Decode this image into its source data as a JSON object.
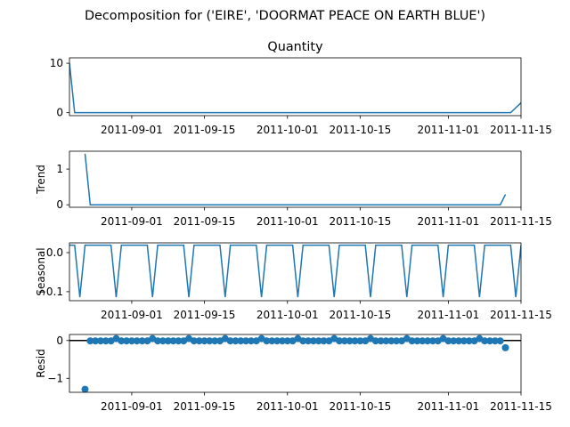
{
  "figure_title": "Decomposition for ('EIRE', 'DOORMAT PEACE ON EARTH BLUE')",
  "colors": {
    "line": "#1f77b4",
    "axis": "#000000",
    "background": "#ffffff"
  },
  "chart_data": [
    {
      "panel": "quantity",
      "type": "line",
      "title": "Quantity",
      "ylabel": "",
      "xlim": [
        "2011-08-20",
        "2011-11-15"
      ],
      "ylim": [
        -0.6,
        11.1
      ],
      "yticks": [
        0,
        10
      ],
      "xticks": [
        "2011-09-01",
        "2011-09-15",
        "2011-10-01",
        "2011-10-15",
        "2011-11-01",
        "2011-11-15"
      ],
      "x": [
        "2011-08-20",
        "2011-08-21",
        "2011-11-13",
        "2011-11-15"
      ],
      "y": [
        10,
        0,
        0,
        2
      ]
    },
    {
      "panel": "trend",
      "type": "line",
      "title": "",
      "ylabel": "Trend",
      "xlim": [
        "2011-08-20",
        "2011-11-15"
      ],
      "ylim": [
        -0.07,
        1.5
      ],
      "yticks": [
        0,
        1
      ],
      "xticks": [
        "2011-09-01",
        "2011-09-15",
        "2011-10-01",
        "2011-10-15",
        "2011-11-01",
        "2011-11-15"
      ],
      "x": [
        "2011-08-23",
        "2011-08-24",
        "2011-11-11",
        "2011-11-12"
      ],
      "y": [
        1.43,
        0.0,
        0.0,
        0.29
      ]
    },
    {
      "panel": "seasonal",
      "type": "line",
      "title": "",
      "ylabel": "Seasonal",
      "xlim": [
        "2011-08-20",
        "2011-11-15"
      ],
      "ylim": [
        -0.123,
        0.025
      ],
      "yticks": [
        0.0,
        -0.1
      ],
      "ytick_labels": [
        "0.0",
        "−0.1"
      ],
      "xticks": [
        "2011-09-01",
        "2011-09-15",
        "2011-10-01",
        "2011-10-15",
        "2011-11-01",
        "2011-11-15"
      ],
      "period_days": 7,
      "pattern": [
        0.019,
        0.019,
        -0.114,
        0.019,
        0.019,
        0.019,
        0.019
      ],
      "start": "2011-08-20",
      "days": 88
    },
    {
      "panel": "resid",
      "type": "scatter",
      "title": "",
      "ylabel": "Resid",
      "xlim": [
        "2011-08-20",
        "2011-11-15"
      ],
      "ylim": [
        -1.37,
        0.16
      ],
      "yticks": [
        0,
        -1
      ],
      "ytick_labels": [
        "0",
        "−1"
      ],
      "xticks": [
        "2011-09-01",
        "2011-09-15",
        "2011-10-01",
        "2011-10-15",
        "2011-11-01",
        "2011-11-15"
      ],
      "zero_line": 0,
      "first_point": {
        "x": "2011-08-23",
        "y": -1.29
      },
      "last_point": {
        "x": "2011-11-12",
        "y": -0.19
      },
      "series_start": "2011-08-24",
      "series_end": "2011-11-11",
      "base_value": -0.01,
      "spike_value": 0.05,
      "spike_period_days": 7,
      "spike_offset_days": 5
    }
  ]
}
